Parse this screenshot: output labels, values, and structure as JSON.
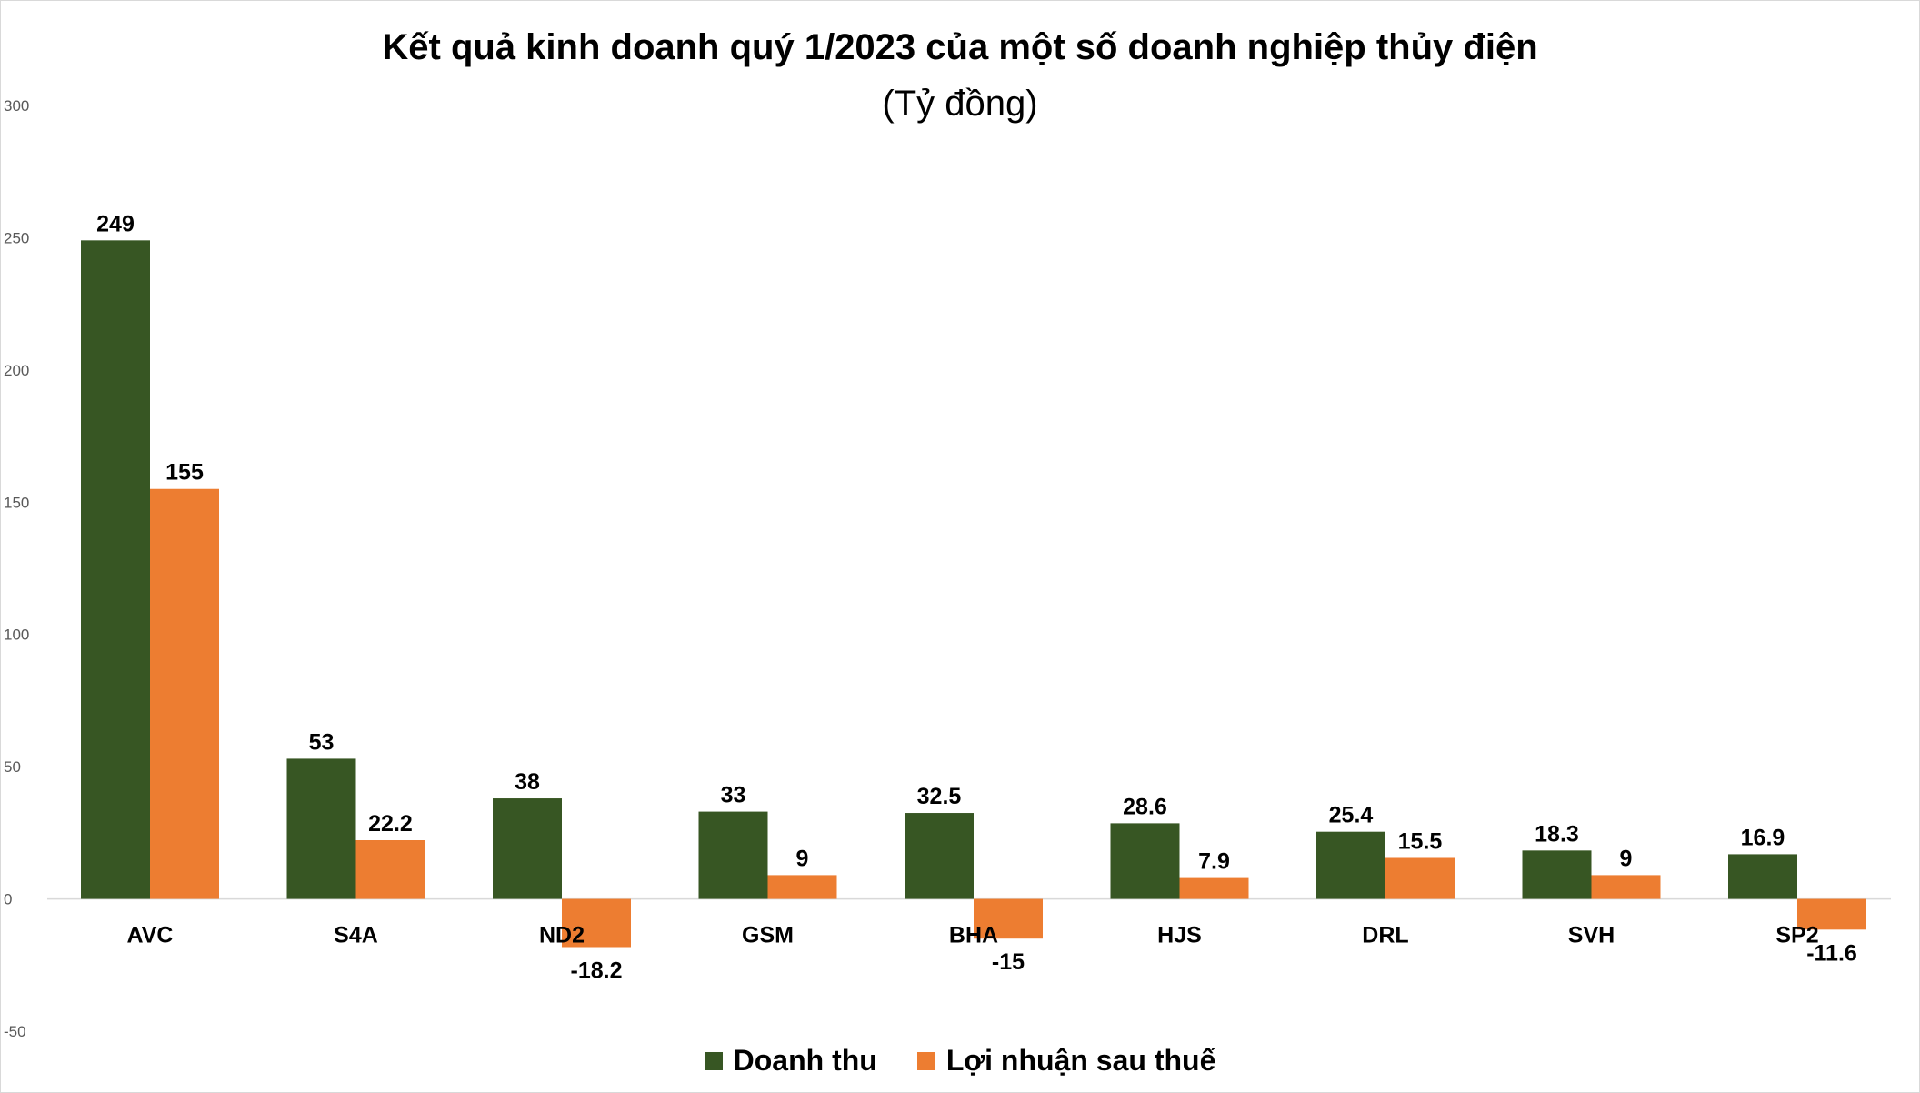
{
  "chart_data": {
    "type": "bar",
    "title": "Kết quả kinh doanh quý 1/2023 của một số doanh nghiệp thủy điện",
    "subtitle": "(Tỷ đồng)",
    "categories": [
      "AVC",
      "S4A",
      "ND2",
      "GSM",
      "BHA",
      "HJS",
      "DRL",
      "SVH",
      "SP2"
    ],
    "series": [
      {
        "name": "Doanh thu",
        "color": "#375623",
        "values": [
          249,
          53,
          38,
          33,
          32.5,
          28.6,
          25.4,
          18.3,
          16.9
        ],
        "labels": [
          "249",
          "53",
          "38",
          "33",
          "32.5",
          "28.6",
          "25.4",
          "18.3",
          "16.9"
        ]
      },
      {
        "name": "Lợi nhuận sau thuế",
        "color": "#ED7D31",
        "values": [
          155,
          22.2,
          -18.2,
          9,
          -15,
          7.9,
          15.5,
          9,
          -11.6
        ],
        "labels": [
          "155",
          "22.2",
          "-18.2",
          "9",
          "-15",
          "7.9",
          "15.5",
          "9",
          "-11.6"
        ]
      }
    ],
    "yticks": [
      "300",
      "250",
      "200",
      "150",
      "100",
      "50",
      "0",
      "-50"
    ],
    "ylim": [
      -50,
      300
    ],
    "xlabel": "",
    "ylabel": "",
    "grid": false,
    "legend": "bottom"
  }
}
